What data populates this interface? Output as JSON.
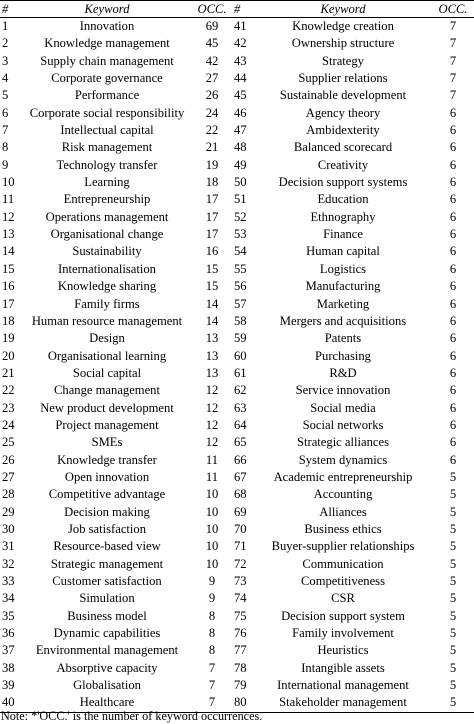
{
  "header": {
    "num": "#",
    "keyword": "Keyword",
    "occ": "OCC."
  },
  "rows": [
    {
      "l": {
        "n": "1",
        "k": "Innovation",
        "o": "69"
      },
      "r": {
        "n": "41",
        "k": "Knowledge creation",
        "o": "7"
      }
    },
    {
      "l": {
        "n": "2",
        "k": "Knowledge management",
        "o": "45"
      },
      "r": {
        "n": "42",
        "k": "Ownership structure",
        "o": "7"
      }
    },
    {
      "l": {
        "n": "3",
        "k": "Supply chain management",
        "o": "42"
      },
      "r": {
        "n": "43",
        "k": "Strategy",
        "o": "7"
      }
    },
    {
      "l": {
        "n": "4",
        "k": "Corporate governance",
        "o": "27"
      },
      "r": {
        "n": "44",
        "k": "Supplier relations",
        "o": "7"
      }
    },
    {
      "l": {
        "n": "5",
        "k": "Performance",
        "o": "26"
      },
      "r": {
        "n": "45",
        "k": "Sustainable development",
        "o": "7"
      }
    },
    {
      "l": {
        "n": "6",
        "k": "Corporate social responsibility",
        "o": "24"
      },
      "r": {
        "n": "46",
        "k": "Agency theory",
        "o": "6"
      }
    },
    {
      "l": {
        "n": "7",
        "k": "Intellectual capital",
        "o": "22"
      },
      "r": {
        "n": "47",
        "k": "Ambidexterity",
        "o": "6"
      }
    },
    {
      "l": {
        "n": "8",
        "k": "Risk management",
        "o": "21"
      },
      "r": {
        "n": "48",
        "k": "Balanced scorecard",
        "o": "6"
      }
    },
    {
      "l": {
        "n": "9",
        "k": "Technology transfer",
        "o": "19"
      },
      "r": {
        "n": "49",
        "k": "Creativity",
        "o": "6"
      }
    },
    {
      "l": {
        "n": "10",
        "k": "Learning",
        "o": "18"
      },
      "r": {
        "n": "50",
        "k": "Decision support systems",
        "o": "6"
      }
    },
    {
      "l": {
        "n": "11",
        "k": "Entrepreneurship",
        "o": "17"
      },
      "r": {
        "n": "51",
        "k": "Education",
        "o": "6"
      }
    },
    {
      "l": {
        "n": "12",
        "k": "Operations management",
        "o": "17"
      },
      "r": {
        "n": "52",
        "k": "Ethnography",
        "o": "6"
      }
    },
    {
      "l": {
        "n": "13",
        "k": "Organisational change",
        "o": "17"
      },
      "r": {
        "n": "53",
        "k": "Finance",
        "o": "6"
      }
    },
    {
      "l": {
        "n": "14",
        "k": "Sustainability",
        "o": "16"
      },
      "r": {
        "n": "54",
        "k": "Human capital",
        "o": "6"
      }
    },
    {
      "l": {
        "n": "15",
        "k": "Internationalisation",
        "o": "15"
      },
      "r": {
        "n": "55",
        "k": "Logistics",
        "o": "6"
      }
    },
    {
      "l": {
        "n": "16",
        "k": "Knowledge sharing",
        "o": "15"
      },
      "r": {
        "n": "56",
        "k": "Manufacturing",
        "o": "6"
      }
    },
    {
      "l": {
        "n": "17",
        "k": "Family firms",
        "o": "14"
      },
      "r": {
        "n": "57",
        "k": "Marketing",
        "o": "6"
      }
    },
    {
      "l": {
        "n": "18",
        "k": "Human resource management",
        "o": "14"
      },
      "r": {
        "n": "58",
        "k": "Mergers and acquisitions",
        "o": "6"
      }
    },
    {
      "l": {
        "n": "19",
        "k": "Design",
        "o": "13"
      },
      "r": {
        "n": "59",
        "k": "Patents",
        "o": "6"
      }
    },
    {
      "l": {
        "n": "20",
        "k": "Organisational learning",
        "o": "13"
      },
      "r": {
        "n": "60",
        "k": "Purchasing",
        "o": "6"
      }
    },
    {
      "l": {
        "n": "21",
        "k": "Social capital",
        "o": "13"
      },
      "r": {
        "n": "61",
        "k": "R&D",
        "o": "6"
      }
    },
    {
      "l": {
        "n": "22",
        "k": "Change management",
        "o": "12"
      },
      "r": {
        "n": "62",
        "k": "Service innovation",
        "o": "6"
      }
    },
    {
      "l": {
        "n": "23",
        "k": "New product development",
        "o": "12"
      },
      "r": {
        "n": "63",
        "k": "Social media",
        "o": "6"
      }
    },
    {
      "l": {
        "n": "24",
        "k": "Project management",
        "o": "12"
      },
      "r": {
        "n": "64",
        "k": "Social networks",
        "o": "6"
      }
    },
    {
      "l": {
        "n": "25",
        "k": "SMEs",
        "o": "12"
      },
      "r": {
        "n": "65",
        "k": "Strategic alliances",
        "o": "6"
      }
    },
    {
      "l": {
        "n": "26",
        "k": "Knowledge transfer",
        "o": "11"
      },
      "r": {
        "n": "66",
        "k": "System dynamics",
        "o": "6"
      }
    },
    {
      "l": {
        "n": "27",
        "k": "Open innovation",
        "o": "11"
      },
      "r": {
        "n": "67",
        "k": "Academic entrepreneurship",
        "o": "5"
      }
    },
    {
      "l": {
        "n": "28",
        "k": "Competitive advantage",
        "o": "10"
      },
      "r": {
        "n": "68",
        "k": "Accounting",
        "o": "5"
      }
    },
    {
      "l": {
        "n": "29",
        "k": "Decision making",
        "o": "10"
      },
      "r": {
        "n": "69",
        "k": "Alliances",
        "o": "5"
      }
    },
    {
      "l": {
        "n": "30",
        "k": "Job satisfaction",
        "o": "10"
      },
      "r": {
        "n": "70",
        "k": "Business ethics",
        "o": "5"
      }
    },
    {
      "l": {
        "n": "31",
        "k": "Resource-based view",
        "o": "10"
      },
      "r": {
        "n": "71",
        "k": "Buyer-supplier relationships",
        "o": "5"
      }
    },
    {
      "l": {
        "n": "32",
        "k": "Strategic management",
        "o": "10"
      },
      "r": {
        "n": "72",
        "k": "Communication",
        "o": "5"
      }
    },
    {
      "l": {
        "n": "33",
        "k": "Customer satisfaction",
        "o": "9"
      },
      "r": {
        "n": "73",
        "k": "Competitiveness",
        "o": "5"
      }
    },
    {
      "l": {
        "n": "34",
        "k": "Simulation",
        "o": "9"
      },
      "r": {
        "n": "74",
        "k": "CSR",
        "o": "5"
      }
    },
    {
      "l": {
        "n": "35",
        "k": "Business model",
        "o": "8"
      },
      "r": {
        "n": "75",
        "k": "Decision support system",
        "o": "5"
      }
    },
    {
      "l": {
        "n": "36",
        "k": "Dynamic capabilities",
        "o": "8"
      },
      "r": {
        "n": "76",
        "k": "Family involvement",
        "o": "5"
      }
    },
    {
      "l": {
        "n": "37",
        "k": "Environmental management",
        "o": "8"
      },
      "r": {
        "n": "77",
        "k": "Heuristics",
        "o": "5"
      }
    },
    {
      "l": {
        "n": "38",
        "k": "Absorptive capacity",
        "o": "7"
      },
      "r": {
        "n": "78",
        "k": "Intangible assets",
        "o": "5"
      }
    },
    {
      "l": {
        "n": "39",
        "k": "Globalisation",
        "o": "7"
      },
      "r": {
        "n": "79",
        "k": "International management",
        "o": "5"
      }
    },
    {
      "l": {
        "n": "40",
        "k": "Healthcare",
        "o": "7"
      },
      "r": {
        "n": "80",
        "k": "Stakeholder management",
        "o": "5"
      }
    }
  ],
  "note": "Note: *'OCC.' is the number of keyword occurrences."
}
